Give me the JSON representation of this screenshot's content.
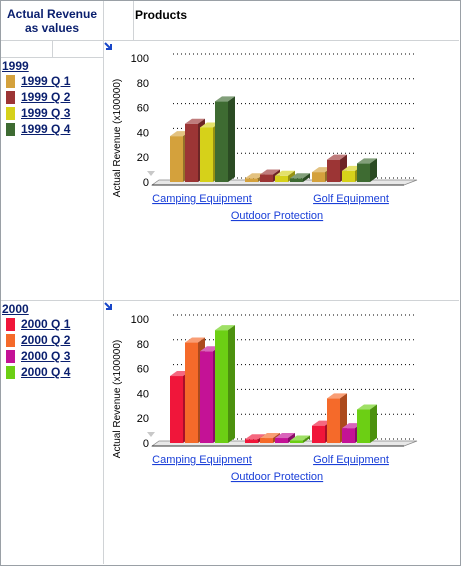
{
  "header": {
    "measure_line1": "Actual Revenue",
    "measure_line2": "as values",
    "dimension": "Products"
  },
  "groups": [
    {
      "year": "1999",
      "legend": [
        {
          "label": "1999 Q 1",
          "color": "#d4a13c"
        },
        {
          "label": "1999 Q 2",
          "color": "#9c3535"
        },
        {
          "label": "1999 Q 3",
          "color": "#d6d11a"
        },
        {
          "label": "1999 Q 4",
          "color": "#3e6b32"
        }
      ]
    },
    {
      "year": "2000",
      "legend": [
        {
          "label": "2000 Q 1",
          "color": "#f0163a"
        },
        {
          "label": "2000 Q 2",
          "color": "#f56a2a"
        },
        {
          "label": "2000 Q 3",
          "color": "#c41296"
        },
        {
          "label": "2000 Q 4",
          "color": "#6ccf14"
        }
      ]
    }
  ],
  "drill_icon": "drill-arrow-icon",
  "chart_data": [
    {
      "type": "bar",
      "categories": [
        "Camping Equipment",
        "Outdoor Protection",
        "Golf Equipment"
      ],
      "series": [
        {
          "name": "1999 Q 1",
          "values": [
            37,
            3,
            8
          ]
        },
        {
          "name": "1999 Q 2",
          "values": [
            47,
            6,
            18
          ]
        },
        {
          "name": "1999 Q 3",
          "values": [
            44,
            5,
            9
          ]
        },
        {
          "name": "1999 Q 4",
          "values": [
            65,
            3,
            15
          ]
        }
      ],
      "ylabel": "Actual Revenue (x100000)",
      "ylim": [
        0,
        100
      ],
      "yticks": [
        "0",
        "20",
        "40",
        "60",
        "80",
        "100"
      ],
      "grid": true
    },
    {
      "type": "bar",
      "categories": [
        "Camping Equipment",
        "Outdoor Protection",
        "Golf Equipment"
      ],
      "series": [
        {
          "name": "2000 Q 1",
          "values": [
            54,
            3,
            14
          ]
        },
        {
          "name": "2000 Q 2",
          "values": [
            81,
            4,
            36
          ]
        },
        {
          "name": "2000 Q 3",
          "values": [
            74,
            4,
            12
          ]
        },
        {
          "name": "2000 Q 4",
          "values": [
            91,
            2,
            27
          ]
        }
      ],
      "ylabel": "Actual Revenue (x100000)",
      "ylim": [
        0,
        100
      ],
      "yticks": [
        "0",
        "20",
        "40",
        "60",
        "80",
        "100"
      ],
      "grid": true
    }
  ]
}
